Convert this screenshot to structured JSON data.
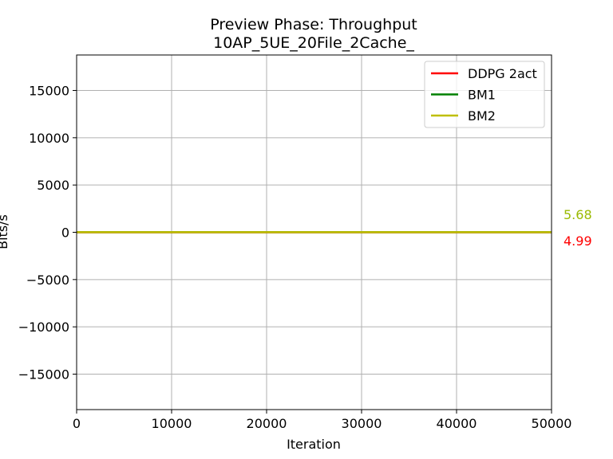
{
  "chart_data": {
    "type": "line",
    "title": "Preview Phase: Throughput",
    "subtitle": "10AP_5UE_20File_2Cache_",
    "xlabel": "Iteration",
    "ylabel": "Bits/s",
    "xlim": [
      0,
      50000
    ],
    "ylim": [
      -18750,
      18750
    ],
    "xticks": [
      0,
      10000,
      20000,
      30000,
      40000,
      50000
    ],
    "xtick_labels": [
      "0",
      "10000",
      "20000",
      "30000",
      "40000",
      "50000"
    ],
    "yticks": [
      -15000,
      -10000,
      -5000,
      0,
      5000,
      10000,
      15000
    ],
    "ytick_labels": [
      "−15000",
      "−10000",
      "−5000",
      "0",
      "5000",
      "10000",
      "15000"
    ],
    "grid": true,
    "legend_position": "top-right",
    "series": [
      {
        "name": "DDPG 2act",
        "color": "#ff0000",
        "x": [
          0,
          50000
        ],
        "y": [
          4.99,
          4.99
        ]
      },
      {
        "name": "BM1",
        "color": "#008000",
        "x": [
          0,
          50000
        ],
        "y": [
          5.68,
          5.68
        ]
      },
      {
        "name": "BM2",
        "color": "#bfbf00",
        "x": [
          0,
          50000
        ],
        "y": [
          5.68,
          5.68
        ]
      }
    ],
    "end_labels": [
      {
        "text": "5.68",
        "color": "#9aba00",
        "value": 5.68
      },
      {
        "text": "4.99",
        "color": "#ff0000",
        "value": 4.99
      }
    ]
  }
}
